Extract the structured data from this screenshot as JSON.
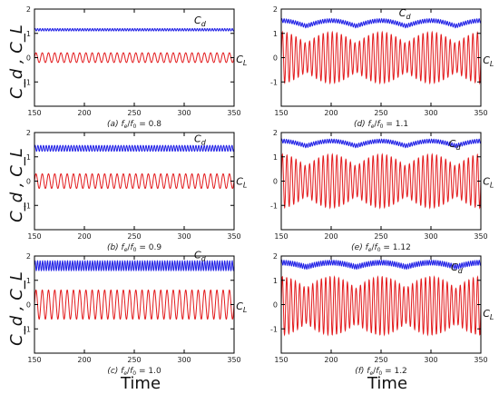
{
  "figure": {
    "ylabel": "C_d , C_L",
    "xlabel": "Time"
  },
  "colors": {
    "cd": "#1f1fe6",
    "cl": "#e31a1c",
    "axis": "#000000"
  },
  "chart_data": [
    {
      "type": "line",
      "panel": "a",
      "caption": "(a) f_e/f_0 = 0.8",
      "xlim": [
        150,
        350
      ],
      "ylim": [
        -2,
        2
      ],
      "xticks": [
        150,
        200,
        250,
        300,
        350
      ],
      "yticks": [
        -1,
        0,
        1,
        2
      ],
      "annotations": [
        {
          "text": "C_d",
          "x": 310,
          "y": 1.55
        },
        {
          "text": "C_L",
          "x": 352,
          "y": -0.05
        }
      ],
      "series": [
        {
          "name": "C_d",
          "color": "#1f1fe6",
          "mean": 1.15,
          "amplitude": 0.05,
          "mod_amplitude": 0.0,
          "oscillations": 40
        },
        {
          "name": "C_L",
          "color": "#e31a1c",
          "mean": 0.0,
          "amplitude": 0.2,
          "mod_amplitude": 0.0,
          "oscillations": 32
        }
      ]
    },
    {
      "type": "line",
      "panel": "d",
      "caption": "(d) f_e/f_0 = 1.1",
      "xlim": [
        150,
        350
      ],
      "ylim": [
        -2,
        2
      ],
      "xticks": [
        150,
        200,
        250,
        300,
        350
      ],
      "yticks": [
        -1,
        0,
        1,
        2
      ],
      "annotations": [
        {
          "text": "C_d",
          "x": 268,
          "y": 1.85
        },
        {
          "text": "C_L",
          "x": 352,
          "y": -0.1
        }
      ],
      "series": [
        {
          "name": "C_d",
          "color": "#1f1fe6",
          "mean": 1.3,
          "amplitude": 0.08,
          "mod_amplitude": 0.28,
          "oscillations": 44
        },
        {
          "name": "C_L",
          "color": "#e31a1c",
          "mean": 0.0,
          "amplitude": 1.05,
          "mod_amplitude": 0.45,
          "oscillations": 44
        }
      ]
    },
    {
      "type": "line",
      "panel": "b",
      "caption": "(b) f_e/f_0 = 0.9",
      "xlim": [
        150,
        350
      ],
      "ylim": [
        -2,
        2
      ],
      "xticks": [
        150,
        200,
        250,
        300,
        350
      ],
      "yticks": [
        -1,
        0,
        1,
        2
      ],
      "annotations": [
        {
          "text": "C_d",
          "x": 310,
          "y": 1.75
        },
        {
          "text": "C_L",
          "x": 352,
          "y": 0.0
        }
      ],
      "series": [
        {
          "name": "C_d",
          "color": "#1f1fe6",
          "mean": 1.35,
          "amplitude": 0.12,
          "mod_amplitude": 0.0,
          "oscillations": 36
        },
        {
          "name": "C_L",
          "color": "#e31a1c",
          "mean": 0.0,
          "amplitude": 0.3,
          "mod_amplitude": 0.0,
          "oscillations": 32
        }
      ]
    },
    {
      "type": "line",
      "panel": "e",
      "caption": "(e) f_e/f_0 = 1.12",
      "xlim": [
        150,
        350
      ],
      "ylim": [
        -2,
        2
      ],
      "xticks": [
        150,
        200,
        250,
        300,
        350
      ],
      "yticks": [
        -1,
        0,
        1,
        2
      ],
      "annotations": [
        {
          "text": "C_d",
          "x": 318,
          "y": 1.55
        },
        {
          "text": "C_L",
          "x": 352,
          "y": 0.0
        }
      ],
      "series": [
        {
          "name": "C_d",
          "color": "#1f1fe6",
          "mean": 1.45,
          "amplitude": 0.08,
          "mod_amplitude": 0.25,
          "oscillations": 44
        },
        {
          "name": "C_L",
          "color": "#e31a1c",
          "mean": 0.0,
          "amplitude": 1.1,
          "mod_amplitude": 0.45,
          "oscillations": 44
        }
      ]
    },
    {
      "type": "line",
      "panel": "c",
      "caption": "(c) f_e/f_0 = 1.0",
      "xlim": [
        150,
        350
      ],
      "ylim": [
        -2,
        2
      ],
      "xticks": [
        150,
        200,
        250,
        300,
        350
      ],
      "yticks": [
        -1,
        0,
        1,
        2
      ],
      "annotations": [
        {
          "text": "C_d",
          "x": 310,
          "y": 2.05
        },
        {
          "text": "C_L",
          "x": 352,
          "y": -0.05
        }
      ],
      "series": [
        {
          "name": "C_d",
          "color": "#1f1fe6",
          "mean": 1.6,
          "amplitude": 0.2,
          "mod_amplitude": 0.0,
          "oscillations": 40
        },
        {
          "name": "C_L",
          "color": "#e31a1c",
          "mean": 0.0,
          "amplitude": 0.6,
          "mod_amplitude": 0.0,
          "oscillations": 32
        }
      ]
    },
    {
      "type": "line",
      "panel": "f",
      "caption": "(f) f_e/f_0 = 1.2",
      "xlim": [
        150,
        350
      ],
      "ylim": [
        -2,
        2
      ],
      "xticks": [
        150,
        200,
        250,
        300,
        350
      ],
      "yticks": [
        -1,
        0,
        1,
        2
      ],
      "annotations": [
        {
          "text": "C_d",
          "x": 320,
          "y": 1.55
        },
        {
          "text": "C_L",
          "x": 352,
          "y": -0.35
        }
      ],
      "series": [
        {
          "name": "C_d",
          "color": "#1f1fe6",
          "mean": 1.55,
          "amplitude": 0.1,
          "mod_amplitude": 0.22,
          "oscillations": 46
        },
        {
          "name": "C_L",
          "color": "#e31a1c",
          "mean": -0.05,
          "amplitude": 1.2,
          "mod_amplitude": 0.4,
          "oscillations": 46
        }
      ]
    }
  ]
}
